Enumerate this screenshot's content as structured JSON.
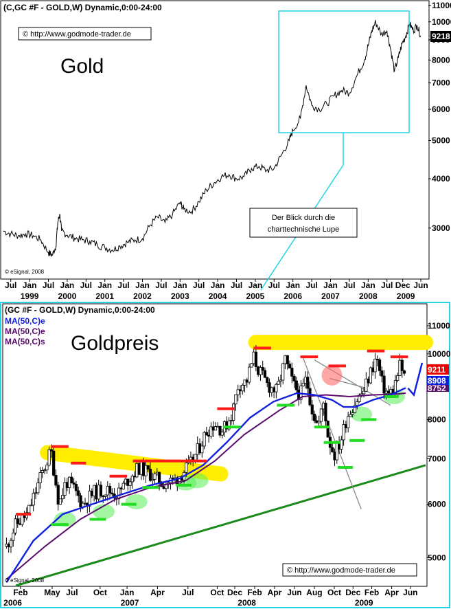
{
  "colors": {
    "frame": "#22d3e6",
    "price": "#000000",
    "ma_blue": "#1020e0",
    "ma_purple": "#5a0a6e",
    "resistance": "#ff1a1a",
    "support": "#22dd22",
    "highlight": "#ffee00",
    "trend": "#1a8a1a"
  },
  "chart_data": [
    {
      "type": "line",
      "header": "(C,GC #F - GOLD,W) Dynamic,0:00-24:00",
      "title": "Gold",
      "copyright": "© http://www.godmode-trader.de",
      "source": "© eSignal, 2008",
      "callout": [
        "Der Blick durch die",
        "charttechnische Lupe"
      ],
      "last_value_label": "9218",
      "y_scale": "log",
      "ylim": [
        2300,
        11000
      ],
      "y_ticks": [
        "11000",
        "10000",
        "9000",
        "8000",
        "7000",
        "6000",
        "5000",
        "4000",
        "3000"
      ],
      "y_ticks_num": [
        11000,
        10000,
        9000,
        8000,
        7000,
        6000,
        5000,
        4000,
        3000
      ],
      "x_month_ticks": [
        "Jul",
        "Jan",
        "Jul",
        "Jan",
        "Jul",
        "Jan",
        "Jul",
        "Jan",
        "Jul",
        "Jan",
        "Jul",
        "Jan",
        "Jul",
        "Jan",
        "Jul",
        "Jan",
        "Jul",
        "Jan",
        "Jul",
        "Jan",
        "Jul",
        "Dec",
        "Jun"
      ],
      "x_year_ticks": [
        "1999",
        "2000",
        "2001",
        "2002",
        "2003",
        "2004",
        "2005",
        "2006",
        "2007",
        "2008",
        "2009"
      ],
      "xlim": [
        1998.25,
        2009.6
      ],
      "series": [
        {
          "x": [
            1998.3,
            1998.5,
            1998.7,
            1998.9,
            1999.1,
            1999.3,
            1999.5,
            1999.6,
            1999.7,
            1999.75,
            1999.8,
            1999.85,
            2000.0,
            2000.2,
            2000.4,
            2000.6,
            2000.8,
            2001.0,
            2001.2,
            2001.4,
            2001.6,
            2001.8,
            2002.0,
            2002.2,
            2002.4,
            2002.6,
            2002.8,
            2003.0,
            2003.1,
            2003.3,
            2003.5,
            2003.7,
            2003.9,
            2004.1,
            2004.3,
            2004.5,
            2004.7,
            2004.9,
            2005.1,
            2005.3,
            2005.5,
            2005.7,
            2005.9,
            2006.0,
            2006.2,
            2006.35,
            2006.5,
            2006.7,
            2006.9,
            2007.1,
            2007.3,
            2007.5,
            2007.7,
            2007.9,
            2008.0,
            2008.1,
            2008.2,
            2008.35,
            2008.5,
            2008.6,
            2008.7,
            2008.8,
            2008.9,
            2009.0,
            2009.1,
            2009.2,
            2009.3,
            2009.4
          ],
          "y": [
            2950,
            2900,
            2870,
            2900,
            2870,
            2800,
            2600,
            2560,
            2700,
            3100,
            3250,
            2950,
            2880,
            2830,
            2800,
            2780,
            2720,
            2680,
            2640,
            2700,
            2760,
            2800,
            2820,
            3050,
            3200,
            3100,
            3250,
            3480,
            3350,
            3300,
            3500,
            3750,
            3900,
            4050,
            4100,
            4000,
            4050,
            4250,
            4300,
            4200,
            4250,
            4600,
            5000,
            5300,
            5700,
            6900,
            6150,
            6000,
            6200,
            6500,
            6700,
            6600,
            7300,
            8000,
            8700,
            9500,
            10000,
            9300,
            9500,
            8500,
            7500,
            8100,
            8800,
            9200,
            9900,
            9500,
            9800,
            9218
          ]
        }
      ]
    },
    {
      "type": "candlestick",
      "header": "(GC #F - GOLD,W) Dynamic,0:00-24:00",
      "title": "Goldpreis",
      "legend": [
        "MA(50,C)e",
        "MA(50,C)e",
        "MA(50,C)s"
      ],
      "copyright": "© http://www.godmode-trader.de",
      "source": "© eSignal, 2008",
      "last_value_labels": [
        "9211",
        "8908",
        "8752"
      ],
      "y_scale": "log",
      "ylim": [
        4550,
        11800
      ],
      "y_ticks": [
        "11000",
        "10000",
        "9000",
        "8000",
        "7000",
        "6000",
        "5000"
      ],
      "y_ticks_num": [
        11000,
        10000,
        9000,
        8000,
        7000,
        6000,
        5000
      ],
      "x_month_ticks": [
        "Feb",
        "May",
        "Jul",
        "Oct",
        "Jan",
        "Apr",
        "Jul",
        "Oct",
        "Dec",
        "Feb",
        "Apr",
        "Jun",
        "Aug",
        "Oct",
        "Dec",
        "Feb",
        "Apr",
        "Jun"
      ],
      "x_year_ticks": [
        "2006",
        "2007",
        "2008",
        "2009"
      ],
      "xlim": [
        2005.95,
        2009.55
      ],
      "close_path": {
        "x": [
          2005.97,
          2006.05,
          2006.15,
          2006.25,
          2006.35,
          2006.42,
          2006.48,
          2006.55,
          2006.62,
          2006.72,
          2006.82,
          2006.92,
          2007.0,
          2007.1,
          2007.2,
          2007.3,
          2007.4,
          2007.48,
          2007.55,
          2007.62,
          2007.68,
          2007.75,
          2007.82,
          2007.9,
          2007.95,
          2008.02,
          2008.08,
          2008.12,
          2008.2,
          2008.28,
          2008.35,
          2008.42,
          2008.48,
          2008.53,
          2008.58,
          2008.63,
          2008.68,
          2008.72,
          2008.77,
          2008.82,
          2008.88,
          2008.95,
          2009.02,
          2009.08,
          2009.13,
          2009.18,
          2009.23,
          2009.28,
          2009.33,
          2009.38
        ],
        "y": [
          5200,
          5600,
          5800,
          6500,
          7200,
          6000,
          6500,
          6300,
          6000,
          6250,
          6300,
          6200,
          6500,
          6800,
          6650,
          6450,
          6500,
          6700,
          6900,
          7300,
          7700,
          7900,
          7700,
          8200,
          9000,
          9100,
          9900,
          9500,
          9000,
          8800,
          9800,
          9000,
          8700,
          9200,
          8300,
          7800,
          8500,
          7500,
          7100,
          7400,
          8100,
          8500,
          8800,
          9400,
          9900,
          9000,
          8700,
          8900,
          9600,
          9200
        ]
      },
      "ma_ema_blue": {
        "x": [
          2005.97,
          2006.2,
          2006.45,
          2006.7,
          2006.95,
          2007.2,
          2007.45,
          2007.65,
          2007.85,
          2008.05,
          2008.25,
          2008.45,
          2008.6,
          2008.75,
          2008.85,
          2008.95,
          2009.1,
          2009.25,
          2009.38
        ],
        "y": [
          4600,
          5300,
          5800,
          6000,
          6200,
          6400,
          6550,
          6850,
          7400,
          8050,
          8500,
          8750,
          8700,
          8550,
          8350,
          8350,
          8550,
          8700,
          8908
        ]
      },
      "ma_purple": {
        "x": [
          2005.97,
          2006.3,
          2006.6,
          2006.9,
          2007.2,
          2007.5,
          2007.75,
          2008.0,
          2008.3,
          2008.5,
          2008.7,
          2008.9,
          2009.1,
          2009.3,
          2009.38
        ],
        "y": [
          4650,
          5200,
          5700,
          6100,
          6350,
          6500,
          6950,
          7600,
          8250,
          8650,
          8700,
          8650,
          8700,
          8720,
          8752
        ]
      },
      "resistance_levels": [
        {
          "x": [
            2006.05,
            2006.18
          ],
          "y": 5800
        },
        {
          "x": [
            2006.35,
            2006.5
          ],
          "y": 7300
        },
        {
          "x": [
            2006.52,
            2006.65
          ],
          "y": 6900
        },
        {
          "x": [
            2006.85,
            2007.0
          ],
          "y": 6600
        },
        {
          "x": [
            2007.05,
            2007.68
          ],
          "y": 6950
        },
        {
          "x": [
            2007.77,
            2007.92
          ],
          "y": 8300
        },
        {
          "x": [
            2008.08,
            2008.23
          ],
          "y": 10200
        },
        {
          "x": [
            2008.48,
            2008.63
          ],
          "y": 9900
        },
        {
          "x": [
            2008.72,
            2008.87
          ],
          "y": 9600
        },
        {
          "x": [
            2009.05,
            2009.2
          ],
          "y": 10100
        },
        {
          "x": [
            2009.25,
            2009.4
          ],
          "y": 9900
        }
      ],
      "support_levels": [
        {
          "x": [
            2006.35,
            2006.5
          ],
          "y": 5600
        },
        {
          "x": [
            2006.68,
            2006.82
          ],
          "y": 5700
        },
        {
          "x": [
            2006.95,
            2007.08
          ],
          "y": 6000
        },
        {
          "x": [
            2007.13,
            2007.27
          ],
          "y": 6350
        },
        {
          "x": [
            2007.42,
            2007.55
          ],
          "y": 6400
        },
        {
          "x": [
            2007.82,
            2007.97
          ],
          "y": 7800
        },
        {
          "x": [
            2008.28,
            2008.43
          ],
          "y": 8400
        },
        {
          "x": [
            2008.6,
            2008.73
          ],
          "y": 7800
        },
        {
          "x": [
            2008.68,
            2008.82
          ],
          "y": 7400
        },
        {
          "x": [
            2008.8,
            2008.93
          ],
          "y": 6800
        },
        {
          "x": [
            2008.9,
            2009.03
          ],
          "y": 7450
        },
        {
          "x": [
            2009.0,
            2009.13
          ],
          "y": 8000
        },
        {
          "x": [
            2009.2,
            2009.32
          ],
          "y": 8650
        }
      ],
      "yellow_zones": [
        {
          "x": [
            2006.32,
            2007.8
          ],
          "y": [
            7150,
            6650
          ],
          "thickness": 8.5
        },
        {
          "x": [
            2008.1,
            2009.55
          ],
          "y": [
            10400,
            10400
          ],
          "thickness": 7.5
        }
      ],
      "highlight_support_marks": [
        {
          "x": 2006.47,
          "y": 5700
        },
        {
          "x": 2006.8,
          "y": 5850
        },
        {
          "x": 2007.08,
          "y": 6050
        },
        {
          "x": 2007.5,
          "y": 6450
        },
        {
          "x": 2007.6,
          "y": 6500
        },
        {
          "x": 2009.0,
          "y": 8150
        },
        {
          "x": 2009.28,
          "y": 8650
        }
      ],
      "highlight_resistance_marks": [
        {
          "x": 2008.75,
          "y": 9300
        }
      ],
      "trendlines": {
        "green": {
          "x": [
            2006.05,
            2009.55
          ],
          "y": [
            4550,
            6850
          ]
        },
        "grey_down": {
          "x": [
            2008.5,
            2009.0
          ],
          "y": [
            9900,
            5900
          ]
        },
        "grey_up": {
          "x": [
            2008.6,
            2009.25
          ],
          "y": [
            9800,
            8400
          ]
        },
        "grey_short": {
          "x": [
            2008.73,
            2009.05
          ],
          "y": [
            9200,
            8900
          ]
        }
      },
      "projection": {
        "x": [
          2009.4,
          2009.45,
          2009.52
        ],
        "y": [
          8900,
          8700,
          9700
        ]
      }
    }
  ]
}
